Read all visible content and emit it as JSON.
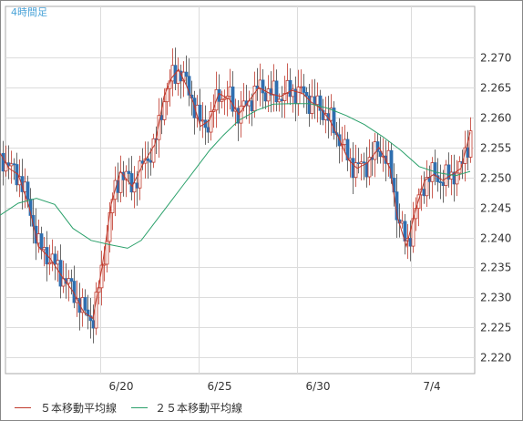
{
  "chart_data": {
    "type": "line",
    "title": "4時間足",
    "y_ticks": [
      "2.270",
      "2.265",
      "2.260",
      "2.255",
      "2.250",
      "2.245",
      "2.240",
      "2.235",
      "2.230",
      "2.225",
      "2.220"
    ],
    "x_ticks": [
      "6/20",
      "6/25",
      "6/30",
      "7/4"
    ],
    "ylim": [
      2.2173,
      2.2785
    ],
    "grid": true,
    "series": [
      {
        "name": "５本移動平均線",
        "color": "#c0392b",
        "points": [
          [
            0,
            2.254
          ],
          [
            10,
            2.2515
          ],
          [
            20,
            2.2505
          ],
          [
            32,
            2.245
          ],
          [
            42,
            2.2385
          ],
          [
            55,
            2.2365
          ],
          [
            68,
            2.2335
          ],
          [
            80,
            2.231
          ],
          [
            92,
            2.2275
          ],
          [
            102,
            2.2265
          ],
          [
            112,
            2.235
          ],
          [
            122,
            2.2455
          ],
          [
            132,
            2.251
          ],
          [
            145,
            2.2485
          ],
          [
            158,
            2.2525
          ],
          [
            170,
            2.2555
          ],
          [
            180,
            2.2635
          ],
          [
            188,
            2.2665
          ],
          [
            196,
            2.268
          ],
          [
            204,
            2.2655
          ],
          [
            212,
            2.2625
          ],
          [
            220,
            2.2585
          ],
          [
            230,
            2.2595
          ],
          [
            240,
            2.264
          ],
          [
            252,
            2.263
          ],
          [
            262,
            2.2605
          ],
          [
            272,
            2.2625
          ],
          [
            284,
            2.265
          ],
          [
            296,
            2.264
          ],
          [
            308,
            2.2635
          ],
          [
            320,
            2.2645
          ],
          [
            332,
            2.264
          ],
          [
            342,
            2.2625
          ],
          [
            352,
            2.2615
          ],
          [
            362,
            2.2595
          ],
          [
            372,
            2.2565
          ],
          [
            382,
            2.253
          ],
          [
            392,
            2.2515
          ],
          [
            404,
            2.2525
          ],
          [
            416,
            2.255
          ],
          [
            428,
            2.2515
          ],
          [
            436,
            2.2435
          ],
          [
            446,
            2.2385
          ],
          [
            456,
            2.2445
          ],
          [
            466,
            2.2495
          ],
          [
            476,
            2.2505
          ],
          [
            486,
            2.2495
          ],
          [
            496,
            2.2505
          ],
          [
            506,
            2.2515
          ],
          [
            516,
            2.2575
          ]
        ]
      },
      {
        "name": "２５本移動平均線",
        "color": "#2aa06a",
        "points": [
          [
            0,
            2.2437
          ],
          [
            20,
            2.2457
          ],
          [
            40,
            2.2465
          ],
          [
            60,
            2.2455
          ],
          [
            80,
            2.2415
          ],
          [
            100,
            2.2395
          ],
          [
            120,
            2.2388
          ],
          [
            140,
            2.2382
          ],
          [
            155,
            2.2395
          ],
          [
            170,
            2.2425
          ],
          [
            185,
            2.2455
          ],
          [
            200,
            2.2485
          ],
          [
            215,
            2.2515
          ],
          [
            230,
            2.2545
          ],
          [
            245,
            2.257
          ],
          [
            262,
            2.2595
          ],
          [
            282,
            2.2612
          ],
          [
            300,
            2.2622
          ],
          [
            320,
            2.2623
          ],
          [
            340,
            2.2623
          ],
          [
            360,
            2.2615
          ],
          [
            380,
            2.2603
          ],
          [
            400,
            2.2588
          ],
          [
            420,
            2.2568
          ],
          [
            440,
            2.2545
          ],
          [
            460,
            2.2518
          ],
          [
            480,
            2.2508
          ],
          [
            500,
            2.2503
          ],
          [
            516,
            2.251
          ]
        ]
      }
    ]
  },
  "legend": {
    "ma5": "５本移動平均線",
    "ma25": "２５本移動平均線"
  }
}
